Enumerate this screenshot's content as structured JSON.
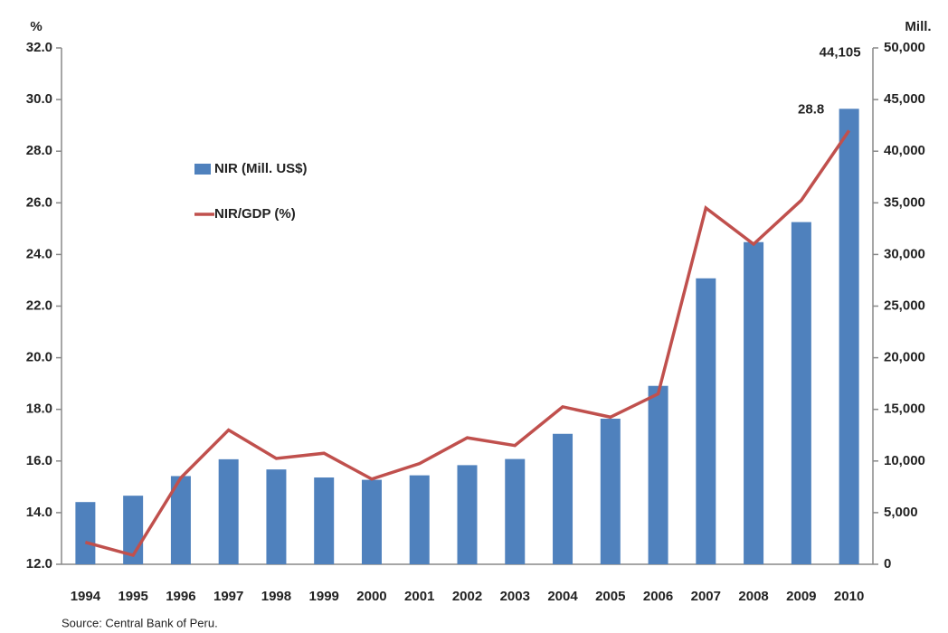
{
  "chart_data": {
    "type": "bar-line",
    "ylabel": "%",
    "y2label": "Mill.",
    "source": "Source: Central Bank of Peru.",
    "categories": [
      "1994",
      "1995",
      "1996",
      "1997",
      "1998",
      "1999",
      "2000",
      "2001",
      "2002",
      "2003",
      "2004",
      "2005",
      "2006",
      "2007",
      "2008",
      "2009",
      "2010"
    ],
    "series": [
      {
        "name": "NIR (Mill. US$)",
        "type": "bar",
        "axis": "y2",
        "color": "#4f81bd",
        "values": [
          6025,
          6641,
          8540,
          10169,
          9183,
          8404,
          8180,
          8613,
          9598,
          10194,
          12631,
          14097,
          17275,
          27689,
          31196,
          33135,
          44105
        ],
        "value_labels": [
          null,
          null,
          null,
          null,
          null,
          null,
          null,
          null,
          null,
          null,
          null,
          null,
          null,
          null,
          null,
          null,
          "44,105"
        ]
      },
      {
        "name": "NIR/GDP (%)",
        "type": "line",
        "axis": "y",
        "color": "#c0504d",
        "values": [
          12.85,
          12.35,
          15.35,
          17.2,
          16.1,
          16.3,
          15.3,
          15.9,
          16.9,
          16.6,
          18.1,
          17.7,
          18.6,
          25.8,
          24.4,
          26.1,
          28.8
        ],
        "value_labels": [
          null,
          null,
          null,
          null,
          null,
          null,
          null,
          null,
          null,
          null,
          null,
          null,
          null,
          null,
          null,
          null,
          "28.8"
        ]
      }
    ],
    "ylim": [
      12,
      32
    ],
    "yticks": [
      {
        "value": 12,
        "label": "12.0"
      },
      {
        "value": 14,
        "label": "14.0"
      },
      {
        "value": 16,
        "label": "16.0"
      },
      {
        "value": 18,
        "label": "18.0"
      },
      {
        "value": 20,
        "label": "20.0"
      },
      {
        "value": 22,
        "label": "22.0"
      },
      {
        "value": 24,
        "label": "24.0"
      },
      {
        "value": 26,
        "label": "26.0"
      },
      {
        "value": 28,
        "label": "28.0"
      },
      {
        "value": 30,
        "label": "30.0"
      },
      {
        "value": 32,
        "label": "32.0"
      }
    ],
    "y2lim": [
      0,
      50000
    ],
    "y2ticks": [
      0,
      {
        "value": 5000,
        "label": "5,000"
      },
      {
        "value": 10000,
        "label": "10,000"
      },
      {
        "value": 15000,
        "label": "15,000"
      },
      {
        "value": 20000,
        "label": "20,000"
      },
      {
        "value": 25000,
        "label": "25,000"
      },
      {
        "value": 30000,
        "label": "30,000"
      },
      {
        "value": 35000,
        "label": "35,000"
      },
      {
        "value": 40000,
        "label": "40,000"
      },
      {
        "value": 45000,
        "label": "45,000"
      },
      {
        "value": 50000,
        "label": "50,000"
      }
    ],
    "legend": "upper left",
    "grid": false
  }
}
